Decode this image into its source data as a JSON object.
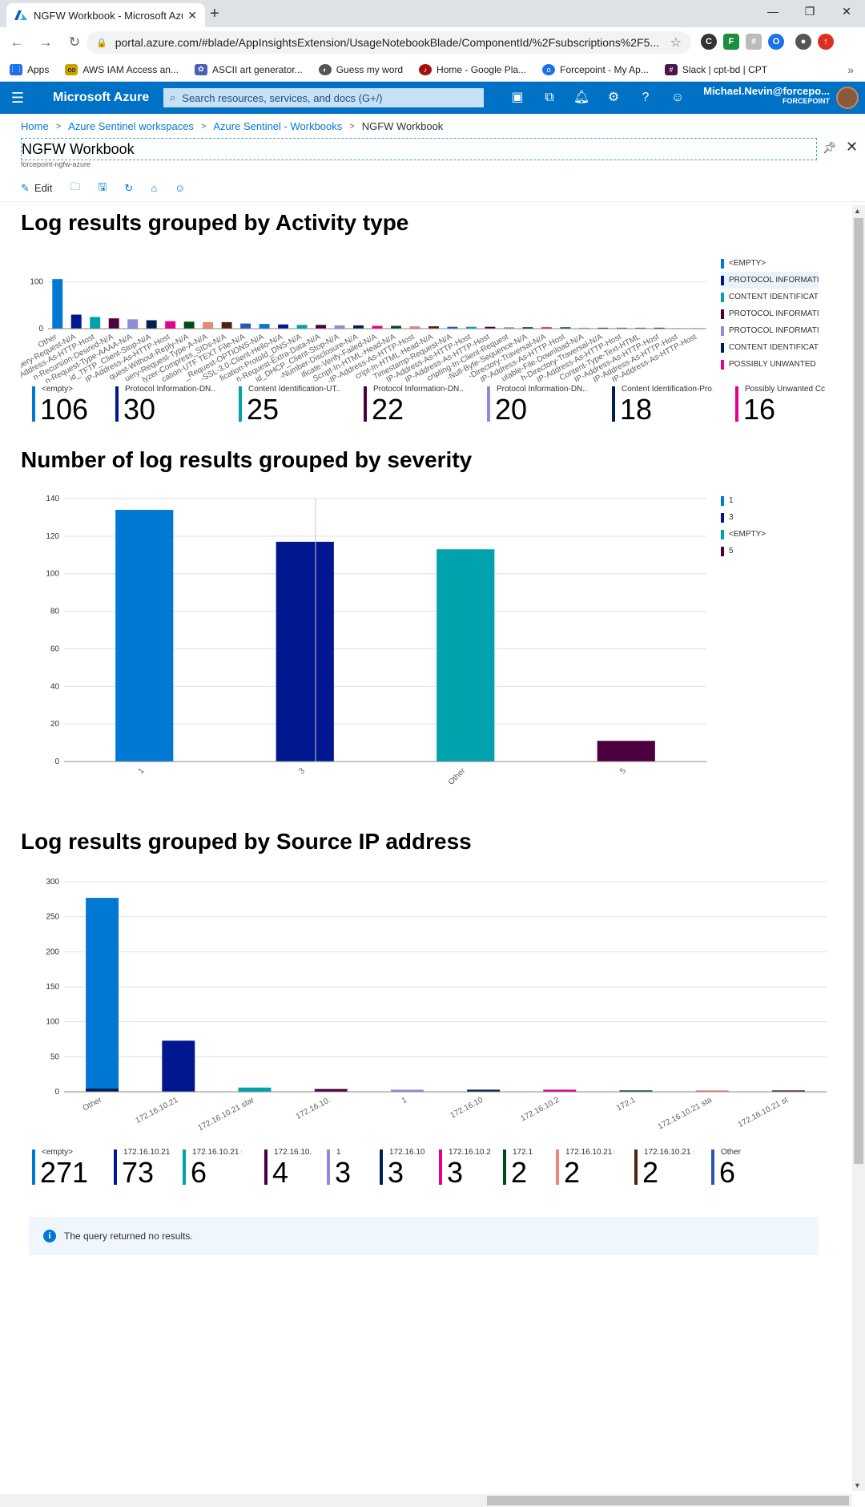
{
  "browser": {
    "tab_title": "NGFW Workbook - Microsoft Azure",
    "url": "portal.azure.com/#blade/AppInsightsExtension/UsageNotebookBlade/ComponentId/%2Fsubscriptions%2F5...",
    "bookmarks": [
      "Apps",
      "AWS IAM Access an...",
      "ASCII art generator...",
      "Guess my word",
      "Home - Google Pla...",
      "Forcepoint - My Ap...",
      "Slack | cpt-bd | CPT"
    ]
  },
  "azure": {
    "brand": "Microsoft Azure",
    "search_placeholder": "Search resources, services, and docs (G+/)",
    "account_name": "Michael.Nevin@forcepo...",
    "account_org": "FORCEPOINT"
  },
  "breadcrumb": [
    "Home",
    "Azure Sentinel workspaces",
    "Azure Sentinel - Workbooks",
    "NGFW Workbook"
  ],
  "page": {
    "title": "NGFW Workbook",
    "subtitle": "forcepoint-ngfw-azure",
    "edit_label": "Edit"
  },
  "sections": {
    "activity_title": "Log results grouped by Activity type",
    "severity_title": "Number of log results grouped by severity",
    "source_ip_title": "Log results grouped by Source IP address"
  },
  "colors": [
    "#0078d4",
    "#00188f",
    "#00a2ad",
    "#4b003f",
    "#8e8cd8",
    "#002050",
    "#e3008c",
    "#004b1c",
    "#ea8774",
    "#4c2312",
    "#2d55b6"
  ],
  "activity": {
    "legend": [
      "<EMPTY>",
      "PROTOCOL INFORMATI...",
      "CONTENT IDENTIFICATI...",
      "PROTOCOL INFORMATI...",
      "PROTOCOL INFORMATI...",
      "CONTENT IDENTIFICATI...",
      "POSSIBLY UNWANTED ..."
    ],
    "tiles": [
      {
        "label": "<empty>",
        "value": "106"
      },
      {
        "label": "Protocol Information-DN...",
        "value": "30"
      },
      {
        "label": "Content Identification-UT...",
        "value": "25"
      },
      {
        "label": "Protocol Information-DN...",
        "value": "22"
      },
      {
        "label": "Protocol Information-DN...",
        "value": "20"
      },
      {
        "label": "Content Identification-Pro...",
        "value": "18"
      },
      {
        "label": "Possibly Unwanted Cc",
        "value": "16"
      }
    ]
  },
  "severity": {
    "legend": [
      "1",
      "3",
      "<EMPTY>",
      "5"
    ]
  },
  "source_ip": {
    "tiles": [
      {
        "label": "<empty>",
        "value": "271"
      },
      {
        "label": "172.16.10.21",
        "value": "73"
      },
      {
        "label": "172.16.10.21 star",
        "value": "6"
      },
      {
        "label": "172.16.10.",
        "value": "4"
      },
      {
        "label": "1",
        "value": "3"
      },
      {
        "label": "172.16.10",
        "value": "3"
      },
      {
        "label": "172.16.10.2",
        "value": "3"
      },
      {
        "label": "172.1",
        "value": "2"
      },
      {
        "label": "172.16.10.21 sta",
        "value": "2"
      },
      {
        "label": "172.16.10.21 st",
        "value": "2"
      },
      {
        "label": "Other",
        "value": "6"
      }
    ]
  },
  "info_message": "The query returned no results.",
  "chart_data": [
    {
      "type": "bar",
      "title": "Log results grouped by Activity type",
      "categories": [
        "Other",
        "rd-Query-Request-N/A",
        "-IP-Address-As-HTTP-Host",
        "n-Recursion-Desired-N/A",
        "n-Request-Type-AAAA-N/A",
        "id_TFTP_Client-Stop-N/A",
        "IP-Address-As-HTTP-Host",
        "quest-Without-Reply-N/A",
        "uery-Request-Type-A-N/A",
        "lyzer-Compress_SIDs-N/A",
        "cation-UTF TEXT File-N/A",
        "_Request-OPTIONS-N/A",
        "-SSL-3.0-Client-Hello-N/A",
        "fication-ProtoId_DNS-N/A",
        "n-Request-Extra-Data-N/A",
        "id_DHCP_Client-Stop-N/A",
        "-Number-Disclosure-N/A",
        "ificate-Verify-Failed-N/A",
        "Script-In-HTML-Head-N/A",
        "-IP-Address-As-HTTP-Host",
        "cript-In-HTML-Head-N/A",
        "Timestamp-Request-N/A",
        "IP-Address-As-HTTP-Host",
        "IP-Address-As-HTTP-Host",
        "cripting-In-Client-Request",
        "-Null-Byte-Sequence-N/A",
        "-Directory-Traversal-N/A",
        "IP-Address-As-HTTP-Host",
        "utable-File-Download-N/A",
        "h-Directory-Traversal-N/A",
        "IP-Address-As-HTTP-Host",
        "Content-Type-Text-HTML",
        "IP-Address-As-HTTP-Host",
        "IP-Address-As-HTTP-Host",
        "IP-Address-As-HTTP-Host"
      ],
      "values": [
        106,
        30,
        25,
        22,
        20,
        18,
        16,
        15,
        14,
        14,
        11,
        10,
        9,
        8,
        8,
        7,
        7,
        6,
        6,
        5,
        5,
        4,
        4,
        4,
        3,
        3,
        3,
        3,
        2,
        2,
        2,
        2,
        2,
        1,
        1
      ],
      "ylim": [
        0,
        120
      ],
      "yticks": [
        "0",
        "100"
      ],
      "legend": "right",
      "grid": true
    },
    {
      "type": "bar",
      "title": "Number of log results grouped by severity",
      "categories": [
        "1",
        "3",
        "Other",
        "5"
      ],
      "values": [
        134,
        117,
        113,
        11
      ],
      "ylim": [
        0,
        140
      ],
      "yticks": [
        "0",
        "20",
        "40",
        "60",
        "80",
        "100",
        "120",
        "140"
      ],
      "legend": "right",
      "grid": true
    },
    {
      "type": "bar",
      "title": "Log results grouped by Source IP address",
      "categories": [
        "Other",
        "172.16.10.21",
        "172.16.10.21 star",
        "172.16.10.",
        "1",
        "172.16.10",
        "172.16.10.2",
        "172.1",
        "172.16.10.21 sta",
        "172.16.10.21 st"
      ],
      "values": [
        277,
        73,
        6,
        4,
        3,
        3,
        3,
        2,
        2,
        2
      ],
      "ylim": [
        0,
        300
      ],
      "yticks": [
        "0",
        "50",
        "100",
        "150",
        "200",
        "250",
        "300"
      ],
      "legend": "none",
      "grid": true
    }
  ]
}
